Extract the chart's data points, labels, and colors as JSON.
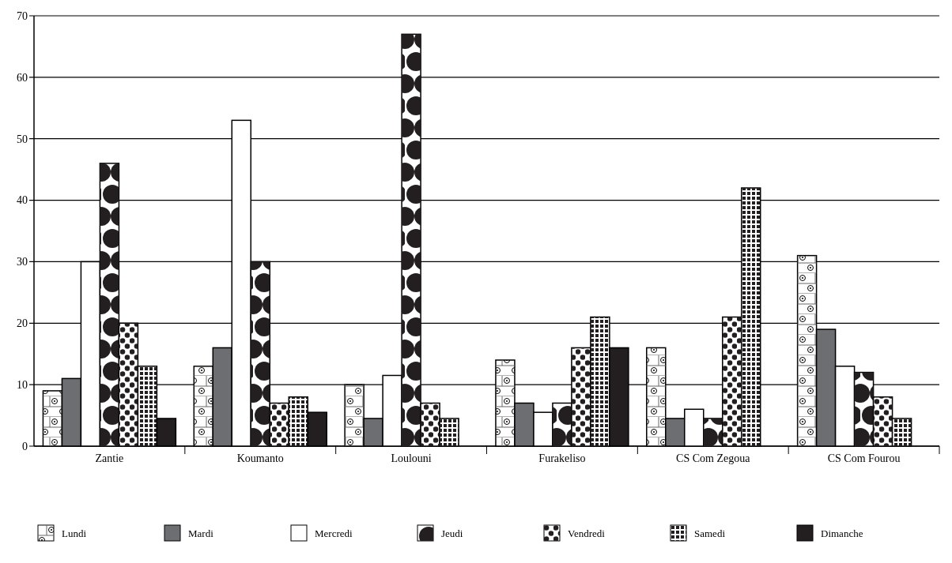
{
  "chart_data": {
    "type": "bar",
    "categories": [
      "Zantie",
      "Koumanto",
      "Loulouni",
      "Furakeliso",
      "CS Com Zegoua",
      "CS Com Fourou"
    ],
    "series": [
      {
        "name": "Lundi",
        "color": "#ffffff",
        "values": [
          9,
          13,
          10,
          14,
          16,
          31
        ]
      },
      {
        "name": "Mardi",
        "color": "#6d6e71",
        "values": [
          11,
          16,
          4.5,
          7,
          4.5,
          19
        ]
      },
      {
        "name": "Mercredi",
        "color": "#ffffff",
        "values": [
          30,
          53,
          11.5,
          5.5,
          6,
          13
        ]
      },
      {
        "name": "Jeudi",
        "color": "#ffffff",
        "values": [
          46,
          30,
          67,
          7,
          4.5,
          12
        ]
      },
      {
        "name": "Vendredi",
        "color": "#ffffff",
        "values": [
          20,
          7,
          7,
          16,
          21,
          8
        ]
      },
      {
        "name": "Samedi",
        "color": "#ffffff",
        "values": [
          13,
          8,
          4.5,
          21,
          42,
          4.5
        ]
      },
      {
        "name": "Dimanche",
        "color": "#231f20",
        "values": [
          4.5,
          5.5,
          null,
          16,
          null,
          null
        ]
      }
    ],
    "ylim": [
      0,
      70
    ],
    "yticks": [
      0,
      10,
      20,
      30,
      40,
      50,
      60,
      70
    ],
    "grid": "y",
    "legend": "bottom"
  }
}
